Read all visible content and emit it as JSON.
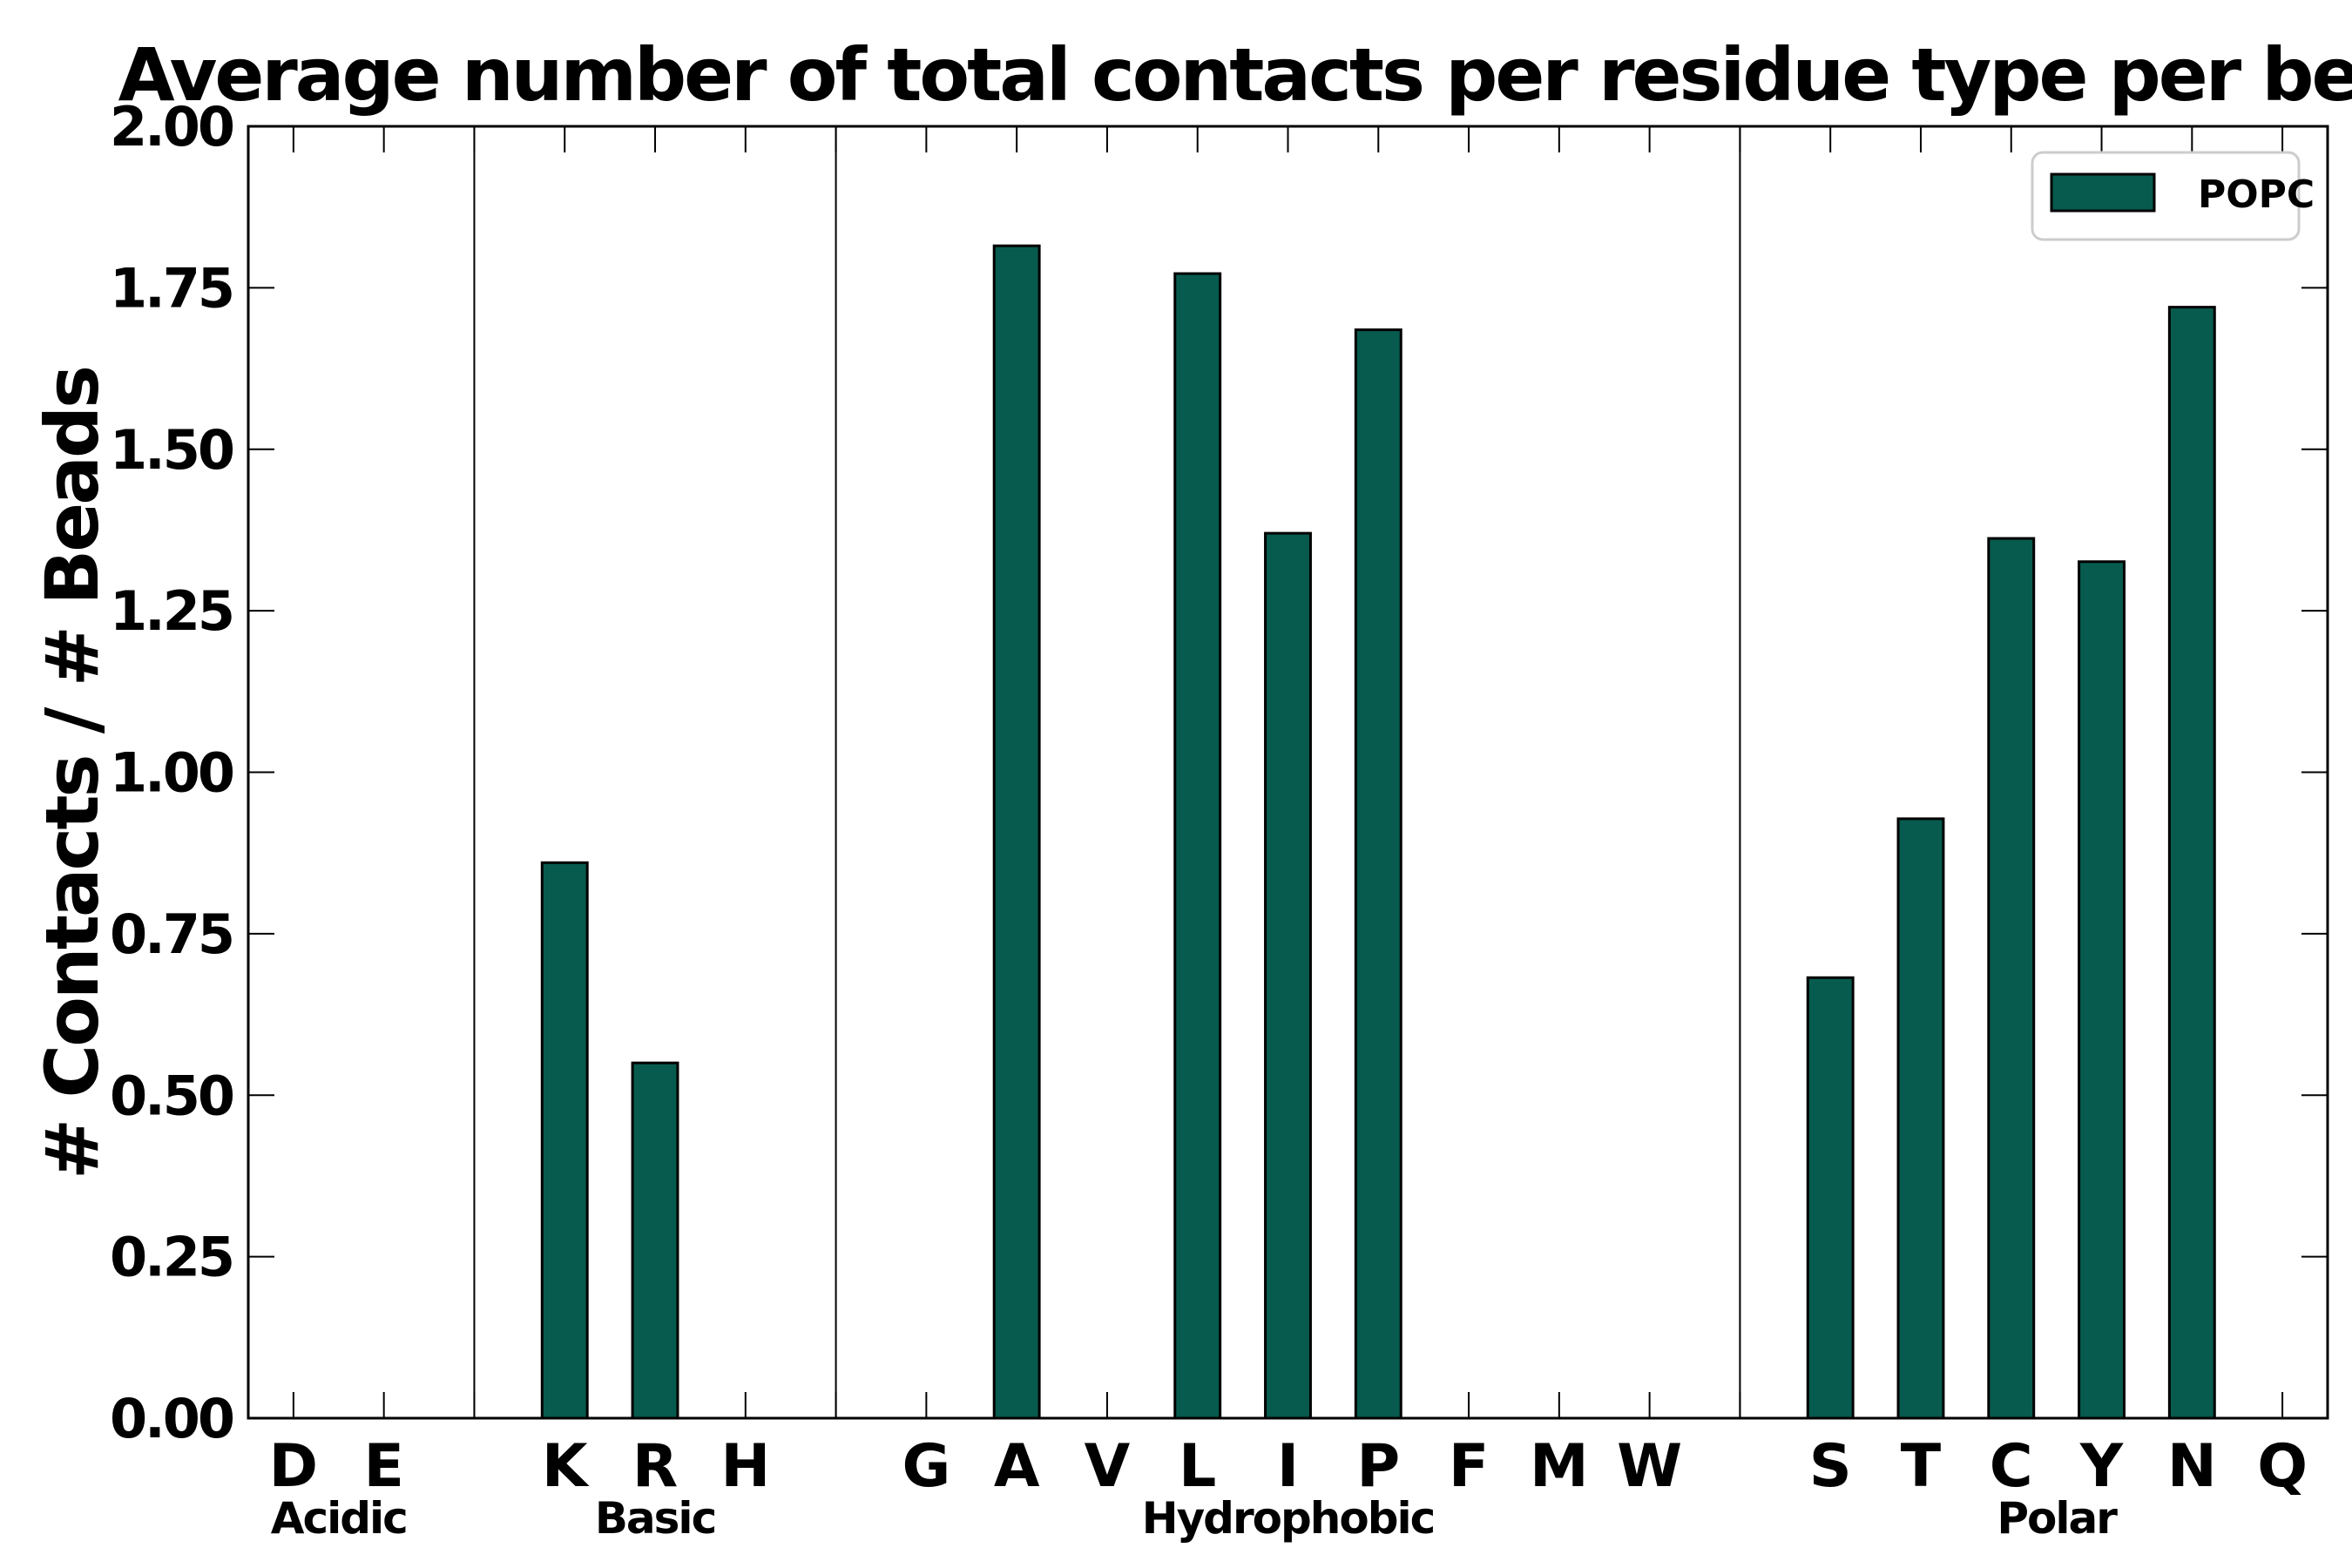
{
  "chart_data": {
    "type": "bar",
    "title": "Average number of total contacts per residue type per bead",
    "xlabel": "",
    "ylabel": "# Contacts / # Beads",
    "ylim": [
      0,
      2.0
    ],
    "yticks": [
      "0.00",
      "0.25",
      "0.50",
      "0.75",
      "1.00",
      "1.25",
      "1.50",
      "1.75",
      "2.00"
    ],
    "categories": [
      "D",
      "E",
      "",
      "K",
      "R",
      "H",
      "",
      "G",
      "A",
      "V",
      "L",
      "I",
      "P",
      "F",
      "M",
      "W",
      "",
      "S",
      "T",
      "C",
      "Y",
      "N",
      "Q"
    ],
    "series": [
      {
        "name": "POPC",
        "color": "#075b4e",
        "values": [
          0,
          0,
          0,
          0.86,
          0.55,
          0,
          0,
          0,
          1.815,
          0,
          1.772,
          1.37,
          1.685,
          0,
          0,
          0,
          0,
          0.682,
          0.928,
          1.362,
          1.326,
          1.72,
          0
        ]
      }
    ],
    "groups": [
      {
        "label": "Acidic",
        "from": 0,
        "to": 1
      },
      {
        "label": "Basic",
        "from": 3,
        "to": 5
      },
      {
        "label": "Hydrophobic",
        "from": 7,
        "to": 15
      },
      {
        "label": "Polar",
        "from": 17,
        "to": 22
      }
    ],
    "separators_after": [
      2,
      6,
      16
    ],
    "legend": {
      "placement": "top-right",
      "entries": [
        "POPC"
      ]
    },
    "grid": false
  }
}
